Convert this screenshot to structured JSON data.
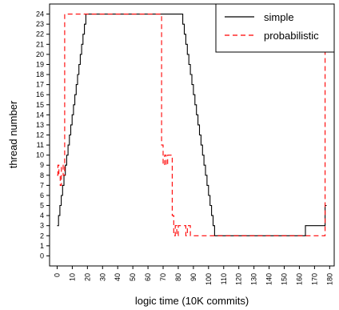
{
  "chart_data": {
    "type": "line",
    "title": "",
    "xlabel": "logic time (10K commits)",
    "ylabel": "thread number",
    "xlim": [
      -5,
      183
    ],
    "ylim": [
      -1,
      25
    ],
    "x_ticks": [
      0,
      10,
      20,
      30,
      40,
      50,
      60,
      70,
      80,
      90,
      100,
      110,
      120,
      130,
      140,
      150,
      160,
      170,
      180
    ],
    "y_ticks": [
      0,
      1,
      2,
      3,
      4,
      5,
      6,
      7,
      8,
      9,
      10,
      11,
      12,
      13,
      14,
      15,
      16,
      17,
      18,
      19,
      20,
      21,
      22,
      23,
      24
    ],
    "legend_position": "top-right",
    "series": [
      {
        "name": "simple",
        "color": "#000000",
        "dash": "solid",
        "points": [
          [
            0,
            3
          ],
          [
            0.9,
            3
          ],
          [
            0.9,
            4
          ],
          [
            1.8,
            4
          ],
          [
            1.8,
            5
          ],
          [
            2.7,
            5
          ],
          [
            2.7,
            6
          ],
          [
            3.6,
            6
          ],
          [
            3.6,
            7
          ],
          [
            4.5,
            7
          ],
          [
            4.5,
            8
          ],
          [
            5.4,
            8
          ],
          [
            5.4,
            9
          ],
          [
            6.3,
            9
          ],
          [
            6.3,
            10
          ],
          [
            7.2,
            10
          ],
          [
            7.2,
            11
          ],
          [
            8.1,
            11
          ],
          [
            8.1,
            12
          ],
          [
            9,
            12
          ],
          [
            9,
            13
          ],
          [
            9.9,
            13
          ],
          [
            9.9,
            14
          ],
          [
            10.8,
            14
          ],
          [
            10.8,
            15
          ],
          [
            11.7,
            15
          ],
          [
            11.7,
            16
          ],
          [
            12.6,
            16
          ],
          [
            12.6,
            17
          ],
          [
            13.5,
            17
          ],
          [
            13.5,
            18
          ],
          [
            14.4,
            18
          ],
          [
            14.4,
            19
          ],
          [
            15.3,
            19
          ],
          [
            15.3,
            20
          ],
          [
            16.2,
            20
          ],
          [
            16.2,
            21
          ],
          [
            17.1,
            21
          ],
          [
            17.1,
            22
          ],
          [
            18,
            22
          ],
          [
            18,
            23
          ],
          [
            19,
            23
          ],
          [
            19,
            24
          ],
          [
            83,
            24
          ],
          [
            83,
            23
          ],
          [
            84,
            23
          ],
          [
            84,
            22
          ],
          [
            85,
            22
          ],
          [
            85,
            21
          ],
          [
            86,
            21
          ],
          [
            86,
            20
          ],
          [
            87,
            20
          ],
          [
            87,
            19
          ],
          [
            88,
            19
          ],
          [
            88,
            18
          ],
          [
            89,
            18
          ],
          [
            89,
            17
          ],
          [
            90,
            17
          ],
          [
            90,
            16
          ],
          [
            91,
            16
          ],
          [
            91,
            15
          ],
          [
            92,
            15
          ],
          [
            92,
            14
          ],
          [
            93,
            14
          ],
          [
            93,
            13
          ],
          [
            94,
            13
          ],
          [
            94,
            12
          ],
          [
            95,
            12
          ],
          [
            95,
            11
          ],
          [
            96,
            11
          ],
          [
            96,
            10
          ],
          [
            97,
            10
          ],
          [
            97,
            9
          ],
          [
            98,
            9
          ],
          [
            98,
            8
          ],
          [
            99,
            8
          ],
          [
            99,
            7
          ],
          [
            100,
            7
          ],
          [
            100,
            6
          ],
          [
            101,
            6
          ],
          [
            101,
            5
          ],
          [
            102,
            5
          ],
          [
            102,
            4
          ],
          [
            103,
            4
          ],
          [
            103,
            3
          ],
          [
            104,
            3
          ],
          [
            104,
            2
          ],
          [
            164,
            2
          ],
          [
            164,
            3
          ],
          [
            177,
            3
          ],
          [
            177,
            5
          ],
          [
            178,
            5
          ]
        ]
      },
      {
        "name": "probabilistic",
        "color": "#ff0000",
        "dash": "dashed",
        "points": [
          [
            0,
            8
          ],
          [
            0.5,
            8
          ],
          [
            0.5,
            9
          ],
          [
            1.2,
            9
          ],
          [
            1.2,
            8
          ],
          [
            2,
            8
          ],
          [
            2,
            7
          ],
          [
            2.8,
            7
          ],
          [
            2.8,
            9
          ],
          [
            4,
            9
          ],
          [
            4,
            8
          ],
          [
            5,
            8
          ],
          [
            5,
            24
          ],
          [
            69,
            24
          ],
          [
            69,
            11
          ],
          [
            70,
            11
          ],
          [
            70,
            9
          ],
          [
            71,
            9
          ],
          [
            71,
            10
          ],
          [
            72,
            10
          ],
          [
            72,
            9
          ],
          [
            73,
            9
          ],
          [
            73,
            10
          ],
          [
            76,
            10
          ],
          [
            76,
            4
          ],
          [
            77,
            4
          ],
          [
            77,
            2
          ],
          [
            78,
            2
          ],
          [
            78,
            3
          ],
          [
            79,
            3
          ],
          [
            79,
            2
          ],
          [
            80,
            2
          ],
          [
            80,
            3
          ],
          [
            85,
            3
          ],
          [
            85,
            2
          ],
          [
            86,
            2
          ],
          [
            86,
            3
          ],
          [
            88,
            3
          ],
          [
            88,
            2
          ],
          [
            177,
            2
          ],
          [
            177,
            24
          ]
        ]
      }
    ]
  }
}
